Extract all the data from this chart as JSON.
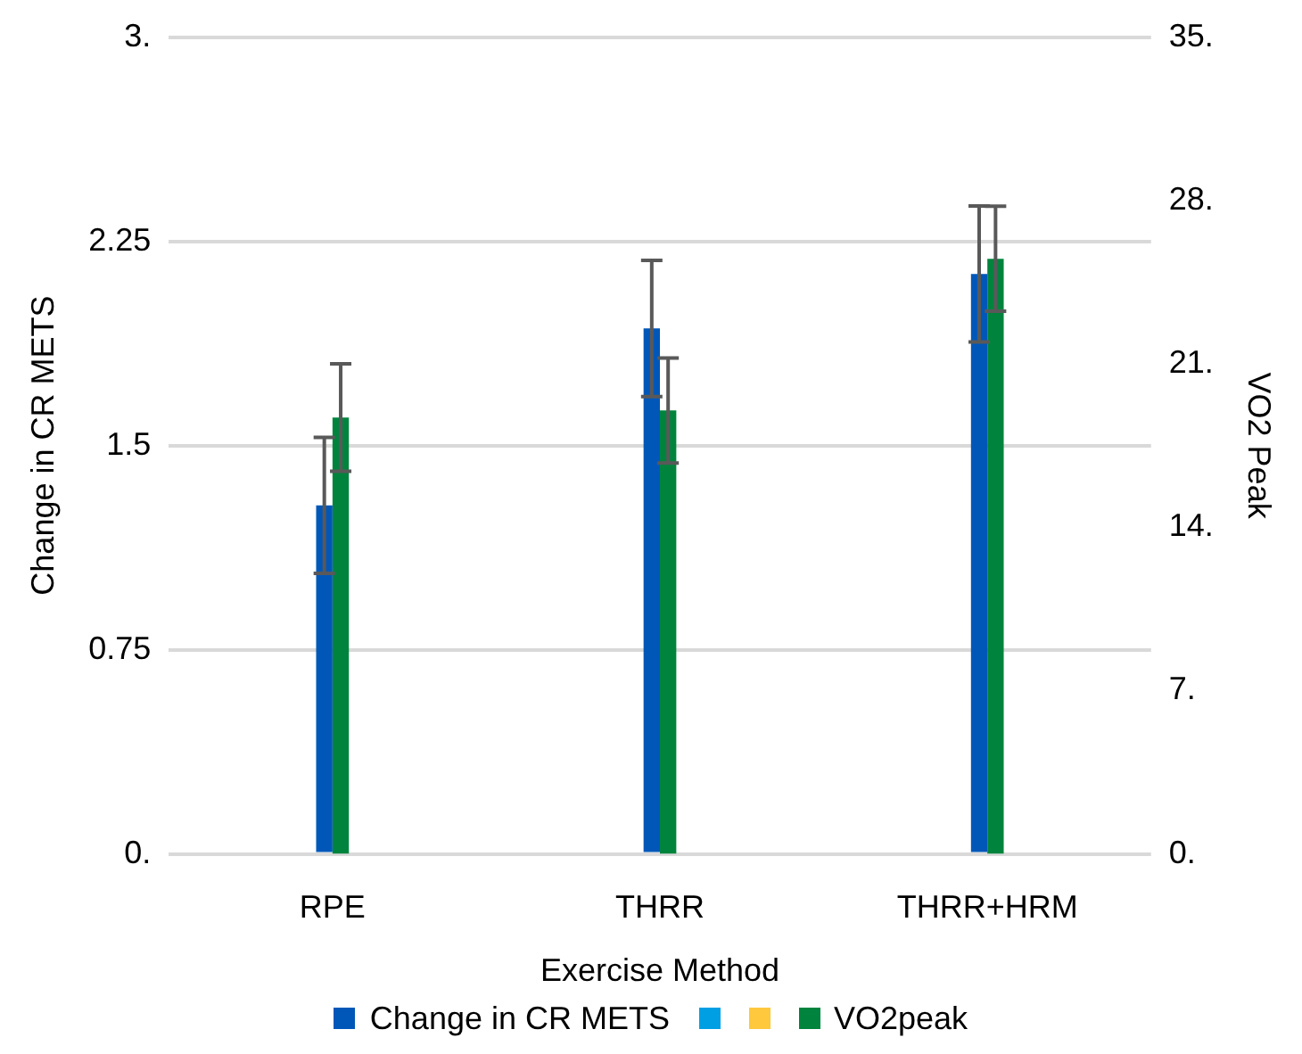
{
  "chart_data": {
    "type": "bar",
    "xlabel": "Exercise Method",
    "ylabel": "Change in CR METS",
    "y2label": "VO2 Peak",
    "categories": [
      "RPE",
      "THRR",
      "THRR+HRM"
    ],
    "series": [
      {
        "name": "Change in CR METS",
        "color": "#0057b8",
        "values": [
          1.28,
          1.93,
          2.13
        ],
        "errors": [
          0.25,
          0.25,
          0.25
        ]
      },
      {
        "color": "#009fe3",
        "values": [
          null,
          null,
          null
        ]
      },
      {
        "color": "#ffc83d",
        "values": [
          null,
          null,
          null
        ]
      },
      {
        "name": "VO2peak",
        "color": "#00843d",
        "axis": "y2",
        "values": [
          18.7,
          19.0,
          25.5
        ],
        "errors": [
          2.3,
          2.25,
          2.25
        ]
      }
    ],
    "ylim": [
      0,
      3
    ],
    "yticks": [
      {
        "value": 0,
        "label": "0."
      },
      {
        "value": 0.75,
        "label": "0.75"
      },
      {
        "value": 1.5,
        "label": "1.5"
      },
      {
        "value": 2.25,
        "label": "2.25"
      },
      {
        "value": 3,
        "label": "3."
      }
    ],
    "y2lim": [
      0,
      35
    ],
    "y2ticks": [
      {
        "value": 0,
        "label": "0."
      },
      {
        "value": 7,
        "label": "7."
      },
      {
        "value": 14,
        "label": "14."
      },
      {
        "value": 21,
        "label": "21."
      },
      {
        "value": 28,
        "label": "28."
      },
      {
        "value": 35,
        "label": "35."
      }
    ],
    "grid": "y",
    "legend": "bottom"
  }
}
